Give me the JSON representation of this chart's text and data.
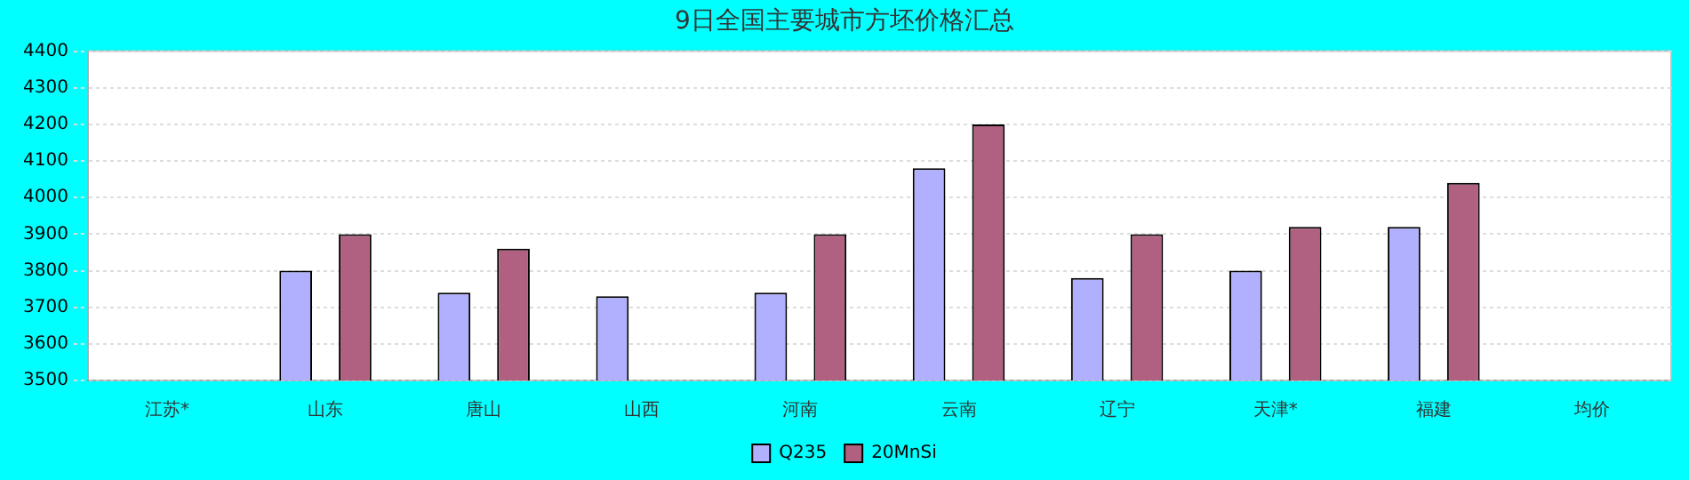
{
  "chart_data": {
    "type": "bar",
    "title": "9日全国主要城市方坯价格汇总",
    "categories": [
      "江苏*",
      "山东",
      "唐山",
      "山西",
      "河南",
      "云南",
      "辽宁",
      "天津*",
      "福建",
      "均价"
    ],
    "series": [
      {
        "name": "Q235",
        "color": "#b0b0ff",
        "values": [
          null,
          3800,
          3740,
          3730,
          3740,
          4080,
          3780,
          3800,
          3920,
          null
        ]
      },
      {
        "name": "20MnSi",
        "color": "#b06080",
        "values": [
          null,
          3900,
          3860,
          null,
          3900,
          4200,
          3900,
          3920,
          4040,
          null
        ]
      }
    ],
    "ylim": [
      3500,
      4400
    ],
    "yticks": [
      3500,
      3600,
      3700,
      3800,
      3900,
      4000,
      4100,
      4200,
      4300,
      4400
    ],
    "grid": "y",
    "legend": "bottom"
  }
}
